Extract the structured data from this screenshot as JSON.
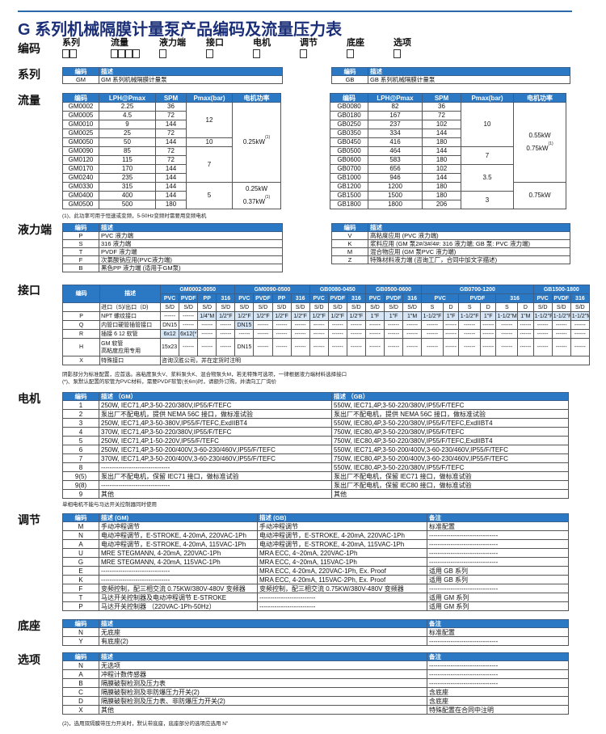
{
  "title": "G 系列机械隔膜计量泵产品编码及流量压力表",
  "code_row": {
    "label": "编码",
    "fields": [
      {
        "label": "系列",
        "boxes": 2
      },
      {
        "label": "流量",
        "boxes": 4
      },
      {
        "label": "液力端",
        "boxes": 1
      },
      {
        "label": "接口",
        "boxes": 1
      },
      {
        "label": "电机",
        "boxes": 1
      },
      {
        "label": "调节",
        "boxes": 1
      },
      {
        "label": "底座",
        "boxes": 1
      },
      {
        "label": "选项",
        "boxes": 1
      }
    ]
  },
  "colors": {
    "header": "#2b78c4",
    "title": "#1b2f78",
    "standard_highlight": "#d6e6f7"
  },
  "series": {
    "label": "系列",
    "left": {
      "headers": [
        "编码",
        "描述"
      ],
      "rows": [
        [
          "GM",
          "GM 系列机械隔膜计量泵"
        ]
      ]
    },
    "right": {
      "headers": [
        "编码",
        "描述"
      ],
      "rows": [
        [
          "GB",
          "GB 系列机械隔膜计量泵"
        ]
      ]
    }
  },
  "flow": {
    "label": "流量",
    "headers": [
      "编码",
      "LPH@Pmax",
      "SPM",
      "Pmax(bar)",
      "电机功率"
    ],
    "gm": {
      "rows": [
        [
          "GM0002",
          "2.25",
          "36"
        ],
        [
          "GM0005",
          "4.5",
          "72"
        ],
        [
          "GM0010",
          "9",
          "144"
        ],
        [
          "GM0025",
          "25",
          "72"
        ],
        [
          "GM0050",
          "50",
          "144"
        ],
        [
          "GM0090",
          "85",
          "72"
        ],
        [
          "GM0120",
          "115",
          "72"
        ],
        [
          "GM0170",
          "170",
          "144"
        ],
        [
          "GM0240",
          "235",
          "144"
        ],
        [
          "GM0330",
          "315",
          "144"
        ],
        [
          "GM0400",
          "400",
          "144"
        ],
        [
          "GM0500",
          "500",
          "180"
        ]
      ],
      "pmax_groups": [
        {
          "value": "12",
          "rows": 4
        },
        {
          "value": "10",
          "rows": 1
        },
        {
          "value": "7",
          "rows": 4
        },
        {
          "value": "5",
          "rows": 3
        }
      ],
      "power_groups": [
        {
          "rows": 9,
          "lines": [
            {
              "text": "0.25kW",
              "sup": "(1)"
            }
          ]
        },
        {
          "rows": 3,
          "lines": [
            {
              "text": "0.25kW",
              "sup": ""
            },
            {
              "text": "0.37kW",
              "sup": "(1)"
            }
          ]
        }
      ]
    },
    "gb": {
      "rows": [
        [
          "GB0080",
          "82",
          "36"
        ],
        [
          "GB0180",
          "167",
          "72"
        ],
        [
          "GB0250",
          "237",
          "102"
        ],
        [
          "GB0350",
          "334",
          "144"
        ],
        [
          "GB0450",
          "416",
          "180"
        ],
        [
          "GB0500",
          "464",
          "144"
        ],
        [
          "GB0600",
          "583",
          "180"
        ],
        [
          "GB0700",
          "656",
          "102"
        ],
        [
          "GB1000",
          "946",
          "144"
        ],
        [
          "GB1200",
          "1200",
          "180"
        ],
        [
          "GB1500",
          "1500",
          "180"
        ],
        [
          "GB1800",
          "1800",
          "206"
        ]
      ],
      "pmax_groups": [
        {
          "value": "10",
          "rows": 5
        },
        {
          "value": "7",
          "rows": 2
        },
        {
          "value": "3.5",
          "rows": 3
        },
        {
          "value": "3",
          "rows": 2
        }
      ],
      "power_groups": [
        {
          "rows": 9,
          "lines": [
            {
              "text": "0.55kW",
              "sup": ""
            },
            {
              "text": "0.75kW",
              "sup": "(1)"
            }
          ]
        },
        {
          "rows": 3,
          "lines": [
            {
              "text": "0.75kW",
              "sup": ""
            }
          ]
        }
      ]
    },
    "note": "(1)、此功率可用于恒速或变频，5-50Hz变频时需要用变频电机"
  },
  "liquid_end": {
    "label": "液力端",
    "left": {
      "headers": [
        "编码",
        "描述"
      ],
      "rows": [
        [
          "P",
          "PVC 液力端"
        ],
        [
          "S",
          "316 液力端"
        ],
        [
          "T",
          "PVDF 液力端"
        ],
        [
          "F",
          "次氯酸钠应用(PVC液力端)"
        ],
        [
          "B",
          "黑色PP 液力端 (适用于GM泵)"
        ]
      ]
    },
    "right": {
      "headers": [
        "编码",
        "描述"
      ],
      "rows": [
        [
          "V",
          "高粘度应用 (PVC 液力端)"
        ],
        [
          "K",
          "浆料应用 (GM 泵2#/3#/4#: 316 液力端; GB 泵: PVC 液力端)"
        ],
        [
          "M",
          "混合物应用 (GM 泵PVC 液力端)"
        ],
        [
          "Z",
          "特殊材料液力端 (咨询工厂，合同中加文字描述)"
        ]
      ]
    }
  },
  "interface": {
    "label": "接口",
    "code_header": "编码",
    "desc_header": "描述",
    "groups": [
      {
        "name": "GM0002-0050",
        "span": 4
      },
      {
        "name": "GM0090-0500",
        "span": 4
      },
      {
        "name": "GB0080-0450",
        "span": 3
      },
      {
        "name": "GB0500-0600",
        "span": 3
      },
      {
        "name": "GB0700-1200",
        "span": 6
      },
      {
        "name": "GB1500-1800",
        "span": 3
      }
    ],
    "materials": [
      {
        "name": "PVC",
        "span": 1
      },
      {
        "name": "PVDF",
        "span": 1
      },
      {
        "name": "PP",
        "span": 1
      },
      {
        "name": "316",
        "span": 1
      },
      {
        "name": "PVC",
        "span": 1
      },
      {
        "name": "PVDF",
        "span": 1
      },
      {
        "name": "PP",
        "span": 1
      },
      {
        "name": "316",
        "span": 1
      },
      {
        "name": "PVC",
        "span": 1
      },
      {
        "name": "PVDF",
        "span": 1
      },
      {
        "name": "316",
        "span": 1
      },
      {
        "name": "PVC",
        "span": 1
      },
      {
        "name": "PVDF",
        "span": 1
      },
      {
        "name": "316",
        "span": 1
      },
      {
        "name": "PVC",
        "span": 2
      },
      {
        "name": "PVDF",
        "span": 2
      },
      {
        "name": "316",
        "span": 2
      },
      {
        "name": "PVC",
        "span": 1
      },
      {
        "name": "PVDF",
        "span": 1
      },
      {
        "name": "316",
        "span": 1
      }
    ],
    "rows": [
      {
        "code": "",
        "desc": [
          "进口（S)/出口（D)"
        ],
        "cells": [
          "S/D",
          "S/D",
          "S/D",
          "S/D",
          "S/D",
          "S/D",
          "S/D",
          "S/D",
          "S/D",
          "S/D",
          "S/D",
          "S/D",
          "S/D",
          "S/D",
          "S",
          "D",
          "S",
          "D",
          "S",
          "D",
          "S/D",
          "S/D",
          "S/D"
        ],
        "standard": []
      },
      {
        "code": "P",
        "desc": [
          "NPT 螺纹接口"
        ],
        "cells": [
          "------",
          "------",
          "1/4\"M",
          "1/2\"F",
          "1/2\"F",
          "1/2\"F",
          "1/2\"F",
          "1/2\"F",
          "1/2\"F",
          "1/2\"F",
          "1/2\"F",
          "1\"F",
          "1\"F",
          "1\"M",
          "1-1/2\"F",
          "1\"F",
          "1-1/2\"F",
          "1\"F",
          "1-1/2\"M",
          "1\"M",
          "1-1/2\"F",
          "1-1/2\"F",
          "1-1/2\"M"
        ],
        "standard": [
          2,
          3,
          4,
          5,
          6,
          7,
          8,
          9,
          10,
          11,
          12,
          13,
          14,
          15,
          16,
          17,
          18,
          19,
          20,
          21,
          22
        ]
      },
      {
        "code": "Q",
        "desc": [
          "内管口硬管插管接口"
        ],
        "cells": [
          "DN15",
          "------",
          "------",
          "------",
          "DN15",
          "------",
          "------",
          "------",
          "------",
          "------",
          "------",
          "------",
          "------",
          "------",
          "------",
          "------",
          "------",
          "------",
          "------",
          "------",
          "------",
          "------",
          "------"
        ],
        "standard": [
          4
        ]
      },
      {
        "code": "R",
        "desc": [
          "插接 6   12 软管"
        ],
        "cells": [
          "6x12",
          "6x12(*)",
          "------",
          "------",
          "------",
          "------",
          "------",
          "------",
          "------",
          "------",
          "------",
          "------",
          "------",
          "------",
          "------",
          "------",
          "------",
          "------",
          "------",
          "------",
          "------",
          "------",
          "------"
        ],
        "standard": [
          0,
          1
        ]
      },
      {
        "code": "H",
        "desc": [
          "GM 软管",
          "高粘度应用专用"
        ],
        "cells": [
          "15x23 9x12",
          "------",
          "------",
          "------",
          "DN15",
          "------",
          "------",
          "------",
          "------",
          "------",
          "------",
          "------",
          "------",
          "------",
          "------",
          "------",
          "------",
          "------",
          "------",
          "------",
          "------",
          "------",
          "------"
        ],
        "standard": []
      },
      {
        "code": "X",
        "desc": [
          "特殊接口"
        ],
        "merged": "咨询汉胜公司，并在定货时注明",
        "standard": []
      }
    ],
    "notes": [
      "阴影部分为标准配置，应首选。高粘度泵头V、浆料泵头K、混合物泵头M，若无特殊可选项，一律根据液力端材料选择接口",
      "(*)、泵默认配置的软管为PVC材料，需要PVDF软管(长6m)时，请额外订购，并请向工厂询价"
    ]
  },
  "motor": {
    "label": "电机",
    "headers": [
      "编码",
      "描述 （GM）",
      "描述 （GB）"
    ],
    "rows": [
      [
        "1",
        "250W, IEC71,4P,3-50-220/380V,IP55/F/TEFC",
        "550W, IEC71,4P,3-50-220/380V,IP55/F/TEFC"
      ],
      [
        "2",
        "泵出厂不配电机，提供 NEMA 56C 接口，做标准试验",
        "泵出厂不配电机，提供 NEMA 56C 接口，做标准试验"
      ],
      [
        "3",
        "250W, IEC71,4P,3-50-380V,IP55/F/TEFC,ExdIIBT4",
        "550W, IEC80,4P,3-50-220/380V,IP55/F/TEFC,ExdIIBT4"
      ],
      [
        "4",
        "370W, IEC71,4P,3-50-220/380V,IP55/F/TEFC",
        "750W, IEC80,4P,3-50-220/380V,IP55/F/TEFC"
      ],
      [
        "5",
        "250W, IEC71,4P,1-50-220V,IP55/F/TEFC",
        "750W, IEC80,4P,3-50-220/380V,IP55/F/TEFC,ExdIIBT4"
      ],
      [
        "6",
        "250W, IEC71,4P,3-50-200/400V,3-60-230/460V,IP55/F/TEFC",
        "550W, IEC71,4P,3-50-200/400V,3-60-230/460V,IP55/F/TEFC"
      ],
      [
        "7",
        "370W, IEC71,4P,3-50-200/400V,3-60-230/460V,IP55/F/TEFC",
        "750W, IEC80,4P,3-50-200/400V,3-60-230/460V,IP55/F/TEFC"
      ],
      [
        "8",
        "--------------------------------",
        "550W, IEC80,4P,3-50-220/380V,IP55/F/TEFC"
      ],
      [
        "9(5)",
        "泵出厂不配电机，保留 IEC71 接口，做标准试验",
        "泵出厂不配电机，保留 IEC71 接口，做标准试验"
      ],
      [
        "9(8)",
        "--------------------------------",
        "泵出厂不配电机，保留 IEC80 接口，做标准试验"
      ],
      [
        "9",
        "其他",
        "其他"
      ]
    ],
    "note": "单相电机不能与马达开关控制器同时使用"
  },
  "regulation": {
    "label": "调节",
    "headers": [
      "编码",
      "描述 (GM)",
      "描述 (GB)",
      "备注"
    ],
    "rows": [
      [
        "M",
        "手动冲程调节",
        "手动冲程调节",
        "标准配置"
      ],
      [
        "N",
        "电动冲程调节，E-STROKE, 4-20mA, 220VAC-1Ph",
        "电动冲程调节，E-STROKE, 4-20mA, 220VAC-1Ph",
        "--------------------------------"
      ],
      [
        "A",
        "电动冲程调节，E-STROKE, 4-20mA, 115VAC-1Ph",
        "电动冲程调节，E-STROKE, 4-20mA, 115VAC-1Ph",
        "--------------------------------"
      ],
      [
        "U",
        "MRE STEGMANN, 4-20mA, 220VAC-1Ph",
        "MRA ECC, 4~20mA, 220VAC-1Ph",
        "--------------------------------"
      ],
      [
        "G",
        "MRE STEGMANN, 4-20mA, 115VAC-1Ph",
        "MRA ECC, 4~20mA, 115VAC-1Ph",
        "--------------------------------"
      ],
      [
        "E",
        "--------------------------------",
        "MRA ECC, 4-20mA, 220VAC-1Ph, Ex. Proof",
        "适用 GB 系列"
      ],
      [
        "K",
        "--------------------------------",
        "MRA ECC, 4-20mA, 115VAC-2Ph, Ex. Proof",
        "适用 GB 系列"
      ],
      [
        "F",
        "变频控制，配三相交流 0.75KW/380V-480V 变频器",
        "变频控制，配三相交流 0.75KW/380V-480V 变频器",
        "--------------------------------"
      ],
      [
        "T",
        "马达开关控制器及电动冲程调节 E-STROKE",
        "--------------------------",
        "适用 GM 系列"
      ],
      [
        "P",
        "马达开关控制器 （220VAC-1Ph-50Hz）",
        "--------------------------",
        "适用 GM 系列"
      ]
    ]
  },
  "base": {
    "label": "底座",
    "headers": [
      "编码",
      "描述",
      "备注"
    ],
    "rows": [
      [
        "N",
        "无底座",
        "标准配置"
      ],
      [
        "Y",
        "有底座(2)",
        "--------------------------------"
      ]
    ]
  },
  "options": {
    "label": "选项",
    "headers": [
      "编码",
      "描述",
      "备注"
    ],
    "rows": [
      [
        "N",
        "无选项",
        "--------------------------------"
      ],
      [
        "A",
        "冲程计数传感器",
        "--------------------------------"
      ],
      [
        "B",
        "隔膜破裂检测及压力表",
        "--------------------------------"
      ],
      [
        "C",
        "隔膜破裂检测及非防爆压力开关(2)",
        "含底座"
      ],
      [
        "D",
        "隔膜破裂检测及压力表、非防爆压力开关(2)",
        "含底座"
      ],
      [
        "X",
        "其他",
        "特殊配置在合同中注明"
      ]
    ],
    "note": "(2)，选用双隔膜带压力开关时，默认带底座，底座部分的选项应选用  N\""
  }
}
